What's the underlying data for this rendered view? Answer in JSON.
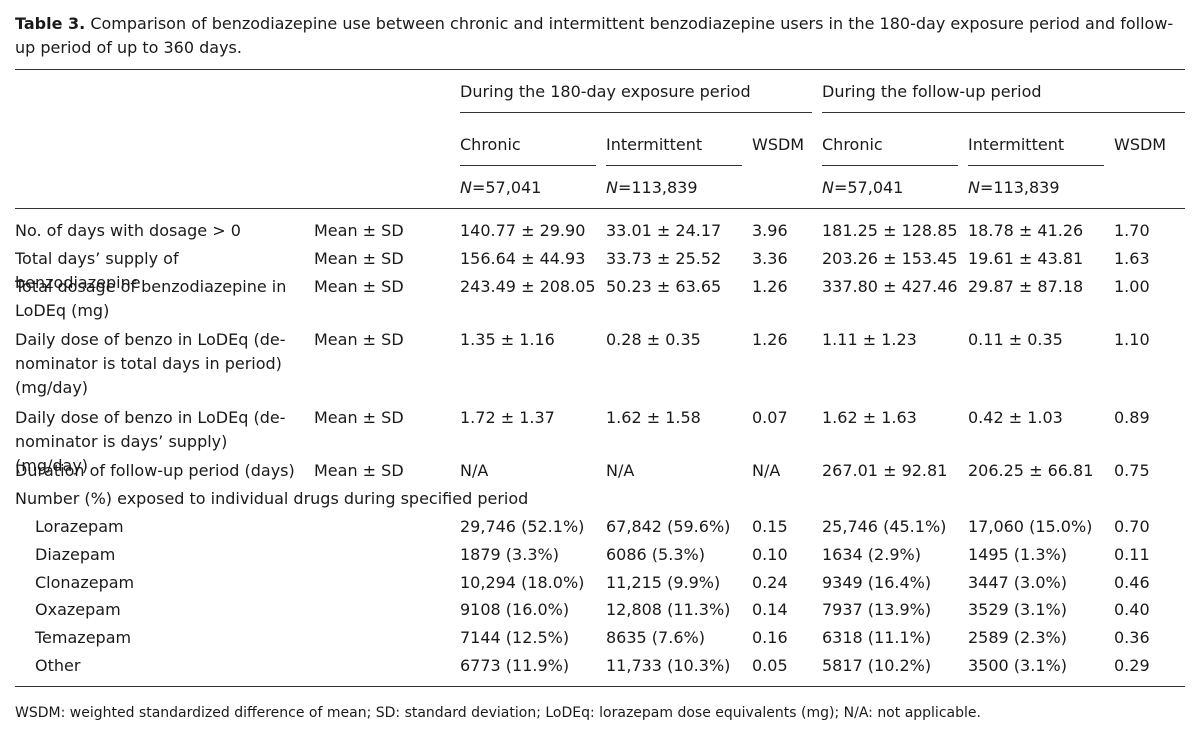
{
  "caption": {
    "label": "Table 3.",
    "text": "Comparison of benzodiazepine use between chronic and intermittent benzodiazepine users in the 180-day exposure period and follow-up period of up to 360 days."
  },
  "header": {
    "period_exposure": "During the 180-day exposure period",
    "period_followup": "During the follow-up period",
    "col_chronic": "Chronic",
    "col_intermittent": "Intermittent",
    "col_wsdm": "WSDM",
    "n_prefix": "N",
    "n_chronic": "=57,041",
    "n_intermittent": "=113,839"
  },
  "rows": [
    {
      "label": "No. of days with dosage > 0",
      "stat": "Mean ± SD",
      "v": [
        "140.77 ± 29.90",
        "33.01 ± 24.17",
        "3.96",
        "181.25 ± 128.85",
        "18.78 ± 41.26",
        "1.70"
      ]
    },
    {
      "label": "Total days’ supply of benzodiazepine",
      "stat": "Mean ± SD",
      "v": [
        "156.64 ± 44.93",
        "33.73 ± 25.52",
        "3.36",
        "203.26 ± 153.45",
        "19.61 ± 43.81",
        "1.63"
      ]
    },
    {
      "label": "Total dosage of benzodiazepine in LoDEq (mg)",
      "stat": "Mean ± SD",
      "v": [
        "243.49 ± 208.05",
        "50.23 ± 63.65",
        "1.26",
        "337.80 ± 427.46",
        "29.87 ± 87.18",
        "1.00"
      ]
    },
    {
      "label": "Daily dose of benzo in LoDEq (de-nominator is total days in period) (mg/day)",
      "stat": "Mean ± SD",
      "v": [
        "1.35 ± 1.16",
        "0.28 ± 0.35",
        "1.26",
        "1.11 ± 1.23",
        "0.11 ± 0.35",
        "1.10"
      ]
    },
    {
      "label": "Daily dose of benzo in LoDEq (de-nominator is days’ supply) (mg/day)",
      "stat": "Mean ± SD",
      "v": [
        "1.72 ± 1.37",
        "1.62 ± 1.58",
        "0.07",
        "1.62 ± 1.63",
        "0.42 ± 1.03",
        "0.89"
      ]
    },
    {
      "label": "Duration of follow-up period (days)",
      "stat": "Mean ± SD",
      "v": [
        "N/A",
        "N/A",
        "N/A",
        "267.01 ± 92.81",
        "206.25 ± 66.81",
        "0.75"
      ]
    }
  ],
  "section_label": "Number (%) exposed to individual drugs during specified period",
  "drugs": [
    {
      "label": "Lorazepam",
      "v": [
        "29,746 (52.1%)",
        "67,842 (59.6%)",
        "0.15",
        "25,746 (45.1%)",
        "17,060 (15.0%)",
        "0.70"
      ]
    },
    {
      "label": "Diazepam",
      "v": [
        "1879 (3.3%)",
        "6086 (5.3%)",
        "0.10",
        "1634 (2.9%)",
        "1495 (1.3%)",
        "0.11"
      ]
    },
    {
      "label": "Clonazepam",
      "v": [
        "10,294 (18.0%)",
        "11,215 (9.9%)",
        "0.24",
        "9349 (16.4%)",
        "3447 (3.0%)",
        "0.46"
      ]
    },
    {
      "label": "Oxazepam",
      "v": [
        "9108 (16.0%)",
        "12,808 (11.3%)",
        "0.14",
        "7937 (13.9%)",
        "3529 (3.1%)",
        "0.40"
      ]
    },
    {
      "label": "Temazepam",
      "v": [
        "7144 (12.5%)",
        "8635 (7.6%)",
        "0.16",
        "6318 (11.1%)",
        "2589 (2.3%)",
        "0.36"
      ]
    },
    {
      "label": "Other",
      "v": [
        "6773 (11.9%)",
        "11,733 (10.3%)",
        "0.05",
        "5817 (10.2%)",
        "3500 (3.1%)",
        "0.29"
      ]
    }
  ],
  "footnote": "WSDM: weighted standardized difference of mean; SD: standard deviation; LoDEq: lorazepam dose equivalents (mg); N/A: not applicable."
}
